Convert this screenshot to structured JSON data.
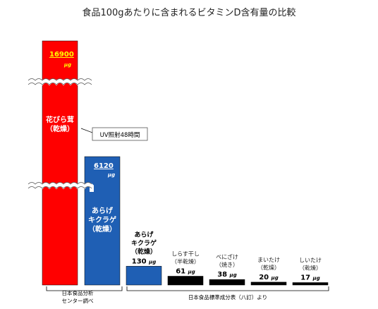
{
  "chart_data": {
    "type": "bar",
    "title": "食品100gあたりに含まれるビタミンD含有量の比較",
    "unit": "μg",
    "axis_break": true,
    "categories": [
      {
        "lines": [
          "花びら茸",
          "（乾燥）"
        ],
        "value": 16900,
        "value_text": "16900",
        "color": "#ff0000",
        "label_inside": true
      },
      {
        "lines": [
          "あらげ",
          "キクラゲ",
          "（乾燥）"
        ],
        "value": 6120,
        "value_text": "6120",
        "color": "#1f5fb4",
        "label_inside": true
      },
      {
        "lines": [
          "あらげ",
          "キクラゲ",
          "（乾燥）"
        ],
        "value": 130,
        "value_text": "130",
        "color": "#1f5fb4",
        "label_inside": false
      },
      {
        "lines": [
          "しらす干し",
          "（半乾燥）"
        ],
        "value": 61,
        "value_text": "61",
        "color": "#000000",
        "label_inside": false
      },
      {
        "lines": [
          "べにざけ",
          "（焼き）"
        ],
        "value": 38,
        "value_text": "38",
        "color": "#000000",
        "label_inside": false
      },
      {
        "lines": [
          "まいたけ",
          "（乾燥）"
        ],
        "value": 20,
        "value_text": "20",
        "color": "#000000",
        "label_inside": false
      },
      {
        "lines": [
          "しいたけ",
          "（乾燥）"
        ],
        "value": 17,
        "value_text": "17",
        "color": "#000000",
        "label_inside": false
      }
    ],
    "annotations": {
      "callout": "UV照射48時間",
      "source_left": [
        "日本食品分析",
        "センター調べ"
      ],
      "source_right": "日本食品標準成分表（八訂）より"
    }
  }
}
